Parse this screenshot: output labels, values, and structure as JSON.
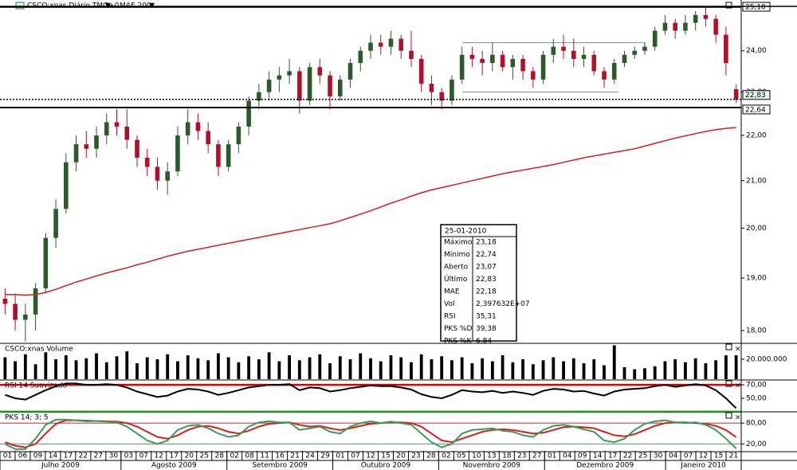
{
  "chart_data": [
    {
      "type": "candlestick",
      "title": "CSCO:xnas Diário TMG+0",
      "log_scale": true,
      "up_color": "#2d5a2d",
      "down_color": "#b0102a",
      "ohlc": [
        [
          18.6,
          18.8,
          18.3,
          18.5
        ],
        [
          18.5,
          18.7,
          18.0,
          18.2
        ],
        [
          18.2,
          18.5,
          17.8,
          18.3
        ],
        [
          18.3,
          18.9,
          18.0,
          18.8
        ],
        [
          18.8,
          19.9,
          18.7,
          19.8
        ],
        [
          19.8,
          20.6,
          19.6,
          20.4
        ],
        [
          20.4,
          21.6,
          20.3,
          21.4
        ],
        [
          21.4,
          22.0,
          21.2,
          21.8
        ],
        [
          21.8,
          22.1,
          21.5,
          21.7
        ],
        [
          21.7,
          22.2,
          21.5,
          22.0
        ],
        [
          22.0,
          22.5,
          21.8,
          22.3
        ],
        [
          22.3,
          22.6,
          22.0,
          22.2
        ],
        [
          22.2,
          22.6,
          21.7,
          21.9
        ],
        [
          21.9,
          22.0,
          21.3,
          21.5
        ],
        [
          21.5,
          21.7,
          21.1,
          21.3
        ],
        [
          21.3,
          21.5,
          20.8,
          21.0
        ],
        [
          21.0,
          21.4,
          20.7,
          21.2
        ],
        [
          21.2,
          22.2,
          21.1,
          22.0
        ],
        [
          22.0,
          22.6,
          21.8,
          22.3
        ],
        [
          22.3,
          22.5,
          21.9,
          22.1
        ],
        [
          22.1,
          22.3,
          21.6,
          21.8
        ],
        [
          21.8,
          21.9,
          21.1,
          21.3
        ],
        [
          21.3,
          21.9,
          21.2,
          21.8
        ],
        [
          21.8,
          22.3,
          21.6,
          22.2
        ],
        [
          22.2,
          22.9,
          22.0,
          22.8
        ],
        [
          22.8,
          23.2,
          22.6,
          23.0
        ],
        [
          23.0,
          23.5,
          22.8,
          23.3
        ],
        [
          23.3,
          23.6,
          23.0,
          23.4
        ],
        [
          23.4,
          23.8,
          23.2,
          23.5
        ],
        [
          23.5,
          23.6,
          22.5,
          22.8
        ],
        [
          22.8,
          23.7,
          22.7,
          23.6
        ],
        [
          23.6,
          23.8,
          23.2,
          23.4
        ],
        [
          23.4,
          23.5,
          22.6,
          22.9
        ],
        [
          22.9,
          23.4,
          22.8,
          23.3
        ],
        [
          23.3,
          23.8,
          23.1,
          23.7
        ],
        [
          23.7,
          24.1,
          23.5,
          24.0
        ],
        [
          24.0,
          24.4,
          23.8,
          24.2
        ],
        [
          24.2,
          24.4,
          23.9,
          24.1
        ],
        [
          24.1,
          24.5,
          23.9,
          24.3
        ],
        [
          24.3,
          24.4,
          23.8,
          24.0
        ],
        [
          24.0,
          24.5,
          23.6,
          23.8
        ],
        [
          23.8,
          23.9,
          23.0,
          23.2
        ],
        [
          23.2,
          23.4,
          22.7,
          23.0
        ],
        [
          23.0,
          23.1,
          22.6,
          22.8
        ],
        [
          22.8,
          23.4,
          22.7,
          23.3
        ],
        [
          23.3,
          24.1,
          23.2,
          23.9
        ],
        [
          23.9,
          24.1,
          23.6,
          23.8
        ],
        [
          23.8,
          24.0,
          23.4,
          23.7
        ],
        [
          23.7,
          24.2,
          23.5,
          23.9
        ],
        [
          23.9,
          24.0,
          23.5,
          23.6
        ],
        [
          23.6,
          23.9,
          23.3,
          23.8
        ],
        [
          23.8,
          23.9,
          23.3,
          23.5
        ],
        [
          23.5,
          23.6,
          23.1,
          23.3
        ],
        [
          23.3,
          24.0,
          23.2,
          23.9
        ],
        [
          23.9,
          24.3,
          23.7,
          24.1
        ],
        [
          24.1,
          24.4,
          23.8,
          24.0
        ],
        [
          24.0,
          24.3,
          23.6,
          23.8
        ],
        [
          23.8,
          24.1,
          23.6,
          23.9
        ],
        [
          23.9,
          24.0,
          23.4,
          23.5
        ],
        [
          23.5,
          23.6,
          23.1,
          23.3
        ],
        [
          23.3,
          23.8,
          23.2,
          23.7
        ],
        [
          23.7,
          24.0,
          23.6,
          23.9
        ],
        [
          23.9,
          24.1,
          23.8,
          24.0
        ],
        [
          24.0,
          24.2,
          23.9,
          24.1
        ],
        [
          24.1,
          24.6,
          24.0,
          24.5
        ],
        [
          24.5,
          24.9,
          24.4,
          24.7
        ],
        [
          24.7,
          24.8,
          24.3,
          24.5
        ],
        [
          24.5,
          24.9,
          24.4,
          24.7
        ],
        [
          24.7,
          25.0,
          24.5,
          24.9
        ],
        [
          24.9,
          25.1,
          24.6,
          24.8
        ],
        [
          24.8,
          24.9,
          24.2,
          24.4
        ],
        [
          24.4,
          24.6,
          23.4,
          23.7
        ],
        [
          23.07,
          23.18,
          22.74,
          22.83
        ]
      ],
      "series": [
        {
          "name": "MAE 200",
          "color": "#d42020",
          "values": [
            18.68,
            18.68,
            18.67,
            18.68,
            18.72,
            18.78,
            18.85,
            18.92,
            18.98,
            19.04,
            19.1,
            19.15,
            19.2,
            19.26,
            19.31,
            19.37,
            19.43,
            19.48,
            19.53,
            19.57,
            19.61,
            19.65,
            19.69,
            19.73,
            19.77,
            19.81,
            19.85,
            19.89,
            19.93,
            19.97,
            20.01,
            20.05,
            20.09,
            20.15,
            20.22,
            20.29,
            20.36,
            20.44,
            20.52,
            20.59,
            20.67,
            20.74,
            20.8,
            20.85,
            20.9,
            20.95,
            21.0,
            21.05,
            21.1,
            21.15,
            21.19,
            21.23,
            21.27,
            21.31,
            21.35,
            21.4,
            21.45,
            21.5,
            21.54,
            21.58,
            21.62,
            21.66,
            21.7,
            21.76,
            21.82,
            21.88,
            21.94,
            21.99,
            22.04,
            22.09,
            22.13,
            22.16,
            22.18
          ]
        }
      ],
      "ylim": [
        17.78,
        25.1
      ],
      "yticks": [
        {
          "value": 18,
          "label": "18,00"
        },
        {
          "value": 19,
          "label": "19,00"
        },
        {
          "value": 20,
          "label": "20,00"
        },
        {
          "value": 21,
          "label": "21,00"
        },
        {
          "value": 22,
          "label": "22,00"
        },
        {
          "value": 23,
          "label": "23,00"
        },
        {
          "value": 24,
          "label": "24,00"
        }
      ],
      "price_lines": [
        {
          "value": 25.1,
          "label": "25,10"
        },
        {
          "value": 22.83,
          "label": "22,83"
        },
        {
          "value": 22.64,
          "label": "22,64"
        }
      ],
      "trend_lines": [
        24.2,
        23.0
      ]
    },
    {
      "type": "bar",
      "title": "CSCO:xnas Volume",
      "color": "#000000",
      "values": [
        22000000,
        18000000,
        25000000,
        15000000,
        27000000,
        20000000,
        24000000,
        19000000,
        21000000,
        26000000,
        17000000,
        23000000,
        28000000,
        16000000,
        22000000,
        20000000,
        25000000,
        18000000,
        24000000,
        21000000,
        19000000,
        26000000,
        22000000,
        17000000,
        23000000,
        20000000,
        27000000,
        18000000,
        24000000,
        19000000,
        22000000,
        25000000,
        16000000,
        23000000,
        20000000,
        26000000,
        21000000,
        18000000,
        24000000,
        22000000,
        17000000,
        25000000,
        20000000,
        23000000,
        19000000,
        22000000,
        16000000,
        21000000,
        18000000,
        24000000,
        17000000,
        20000000,
        15000000,
        19000000,
        22000000,
        18000000,
        21000000,
        16000000,
        20000000,
        14000000,
        34000000,
        12000000,
        10000000,
        11000000,
        13000000,
        18000000,
        20000000,
        17000000,
        21000000,
        16000000,
        19000000,
        24000000,
        23976320
      ],
      "ylim": [
        0,
        35200000
      ],
      "yticks": [
        {
          "value": 20000000,
          "label": "20.000.000"
        }
      ]
    },
    {
      "type": "line",
      "title": "RSI 14 Suavizado",
      "series": [
        {
          "name": "RSI",
          "color": "#000000",
          "values": [
            55,
            50,
            48,
            55,
            62,
            68,
            72,
            72,
            70,
            70,
            71,
            70,
            66,
            60,
            56,
            52,
            54,
            60,
            64,
            63,
            60,
            55,
            58,
            62,
            66,
            68,
            70,
            70,
            71,
            62,
            66,
            65,
            60,
            62,
            65,
            67,
            69,
            68,
            68,
            66,
            63,
            56,
            52,
            50,
            55,
            62,
            60,
            59,
            61,
            58,
            60,
            58,
            55,
            61,
            64,
            63,
            60,
            61,
            57,
            54,
            60,
            63,
            64,
            65,
            68,
            70,
            67,
            69,
            71,
            69,
            62,
            50,
            35.31
          ]
        }
      ],
      "levels": [
        {
          "value": 70,
          "color": "#e00000"
        },
        {
          "value": 30,
          "color": "#1a8a1a"
        }
      ],
      "ylim": [
        31,
        76
      ],
      "yticks": [
        {
          "value": 70,
          "label": "70,00"
        },
        {
          "value": 50,
          "label": "50,00"
        }
      ]
    },
    {
      "type": "line",
      "title": "PKS 14; 3; 5",
      "series": [
        {
          "name": "PKS %D",
          "color": "#d42020",
          "values": [
            25,
            15,
            10,
            20,
            50,
            78,
            88,
            88,
            87,
            86,
            85,
            84,
            80,
            70,
            55,
            40,
            35,
            45,
            60,
            70,
            72,
            65,
            55,
            50,
            58,
            70,
            78,
            80,
            82,
            75,
            70,
            72,
            65,
            60,
            65,
            72,
            78,
            80,
            82,
            82,
            80,
            70,
            50,
            30,
            25,
            35,
            45,
            55,
            60,
            62,
            60,
            55,
            50,
            52,
            60,
            68,
            70,
            68,
            65,
            55,
            45,
            42,
            48,
            60,
            72,
            80,
            82,
            82,
            80,
            78,
            72,
            60,
            39.38
          ]
        },
        {
          "name": "PKS %K",
          "color": "#3a9a5a",
          "values": [
            20,
            5,
            5,
            35,
            75,
            90,
            90,
            88,
            85,
            86,
            84,
            82,
            70,
            50,
            30,
            20,
            30,
            60,
            72,
            75,
            65,
            50,
            40,
            45,
            70,
            82,
            85,
            82,
            82,
            60,
            65,
            70,
            55,
            50,
            70,
            80,
            85,
            80,
            84,
            80,
            75,
            50,
            25,
            10,
            20,
            50,
            60,
            62,
            65,
            58,
            55,
            45,
            40,
            60,
            72,
            75,
            70,
            62,
            55,
            30,
            25,
            35,
            60,
            78,
            85,
            88,
            82,
            80,
            82,
            75,
            60,
            35,
            6.84
          ]
        }
      ],
      "levels": [
        {
          "value": 80,
          "color": "#d42020"
        },
        {
          "value": 20,
          "color": "#3a9a5a"
        }
      ],
      "ylim": [
        0,
        110
      ],
      "yticks": [
        {
          "value": 80,
          "label": "80,00"
        },
        {
          "value": 20,
          "label": "20,00"
        }
      ]
    }
  ],
  "date_axis": {
    "days": [
      "01",
      "06",
      "09",
      "14",
      "17",
      "22",
      "27",
      "30",
      "03",
      "07",
      "12",
      "17",
      "20",
      "25",
      "28",
      "02",
      "08",
      "11",
      "16",
      "21",
      "24",
      "29",
      "01",
      "07",
      "12",
      "15",
      "20",
      "23",
      "28",
      "02",
      "05",
      "10",
      "13",
      "18",
      "23",
      "27",
      "01",
      "04",
      "09",
      "14",
      "17",
      "22",
      "25",
      "30",
      "04",
      "07",
      "12",
      "15",
      "21"
    ],
    "months": [
      "Julho 2009",
      "Agosto 2009",
      "Setembro 2009",
      "Outubro 2009",
      "Novembro 2009",
      "Dezembro 2009",
      "Janeiro 2010"
    ]
  },
  "info_box": {
    "date": "25-01-2010",
    "rows": [
      {
        "label": "Máximo",
        "value": "23,18",
        "color": "#000000"
      },
      {
        "label": "Mínimo",
        "value": "22,74",
        "color": "#000000"
      },
      {
        "label": "Aberto",
        "value": "23,07",
        "color": "#000000"
      },
      {
        "label": "Último",
        "value": "22,83",
        "color": "#1a8a1a"
      },
      {
        "label": "MAE",
        "value": "22,18",
        "color": "#d42020"
      },
      {
        "label": "Vol",
        "value": "2,397632E+07",
        "color": "#000000"
      },
      {
        "label": "RSI",
        "value": "35,31",
        "color": "#000000"
      },
      {
        "label": "PKS %D",
        "value": "39,38",
        "color": "#d42020"
      },
      {
        "label": "PKS %K",
        "value": "6,84",
        "color": "#3a9a5a"
      }
    ]
  }
}
